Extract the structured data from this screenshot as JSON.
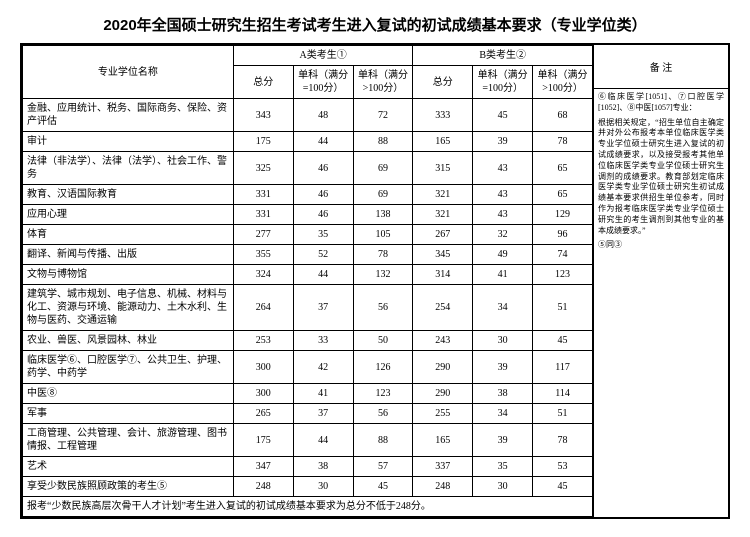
{
  "title": "2020年全国硕士研究生招生考试考生进入复试的初试成绩基本要求（专业学位类）",
  "headers": {
    "major": "专业学位名称",
    "groupA": "A类考生①",
    "groupB": "B类考生②",
    "total": "总分",
    "sub100": "单科（满分=100分）",
    "subOver100": "单科（满分>100分）",
    "remark": "备 注"
  },
  "rows": [
    {
      "name": "金融、应用统计、税务、国际商务、保险、资产评估",
      "a": [
        343,
        48,
        72
      ],
      "b": [
        333,
        45,
        68
      ]
    },
    {
      "name": "审计",
      "a": [
        175,
        44,
        88
      ],
      "b": [
        165,
        39,
        78
      ]
    },
    {
      "name": "法律（非法学）、法律（法学）、社会工作、警务",
      "a": [
        325,
        46,
        69
      ],
      "b": [
        315,
        43,
        65
      ]
    },
    {
      "name": "教育、汉语国际教育",
      "a": [
        331,
        46,
        69
      ],
      "b": [
        321,
        43,
        65
      ]
    },
    {
      "name": "应用心理",
      "a": [
        331,
        46,
        138
      ],
      "b": [
        321,
        43,
        129
      ]
    },
    {
      "name": "体育",
      "a": [
        277,
        35,
        105
      ],
      "b": [
        267,
        32,
        96
      ]
    },
    {
      "name": "翻译、新闻与传播、出版",
      "a": [
        355,
        52,
        78
      ],
      "b": [
        345,
        49,
        74
      ]
    },
    {
      "name": "文物与博物馆",
      "a": [
        324,
        44,
        132
      ],
      "b": [
        314,
        41,
        123
      ]
    },
    {
      "name": "建筑学、城市规划、电子信息、机械、材料与化工、资源与环境、能源动力、土木水利、生物与医药、交通运输",
      "a": [
        264,
        37,
        56
      ],
      "b": [
        254,
        34,
        51
      ]
    },
    {
      "name": "农业、兽医、风景园林、林业",
      "a": [
        253,
        33,
        50
      ],
      "b": [
        243,
        30,
        45
      ]
    },
    {
      "name": "临床医学⑥、口腔医学⑦、公共卫生、护理、药学、中药学",
      "a": [
        300,
        42,
        126
      ],
      "b": [
        290,
        39,
        117
      ]
    },
    {
      "name": "中医⑧",
      "a": [
        300,
        41,
        123
      ],
      "b": [
        290,
        38,
        114
      ]
    },
    {
      "name": "军事",
      "a": [
        265,
        37,
        56
      ],
      "b": [
        255,
        34,
        51
      ]
    },
    {
      "name": "工商管理、公共管理、会计、旅游管理、图书情报、工程管理",
      "a": [
        175,
        44,
        88
      ],
      "b": [
        165,
        39,
        78
      ]
    },
    {
      "name": "艺术",
      "a": [
        347,
        38,
        57
      ],
      "b": [
        337,
        35,
        53
      ]
    },
    {
      "name": "享受少数民族照顾政策的考生⑤",
      "a": [
        248,
        30,
        45
      ],
      "b": [
        248,
        30,
        45
      ]
    }
  ],
  "footnote": "报考“少数民族高层次骨干人才计划”考生进入复试的初试成绩基本要求为总分不低于248分。",
  "notes": {
    "p1": "⑥临床医学[1051]、⑦口腔医学[1052]、⑧中医[1057]专业：",
    "p2": "根据相关规定，“招生单位自主确定并对外公布报考本单位临床医学类专业学位硕士研究生进入复试的初试成绩要求，以及接受报考其他单位临床医学类专业学位硕士研究生调剂的成绩要求。教育部划定临床医学类专业学位硕士研究生初试成绩基本要求供招生单位参考，同时作为报考临床医学类专业学位硕士研究生的考生调剂到其他专业的基本成绩要求。”",
    "p3": "⑤同③"
  }
}
